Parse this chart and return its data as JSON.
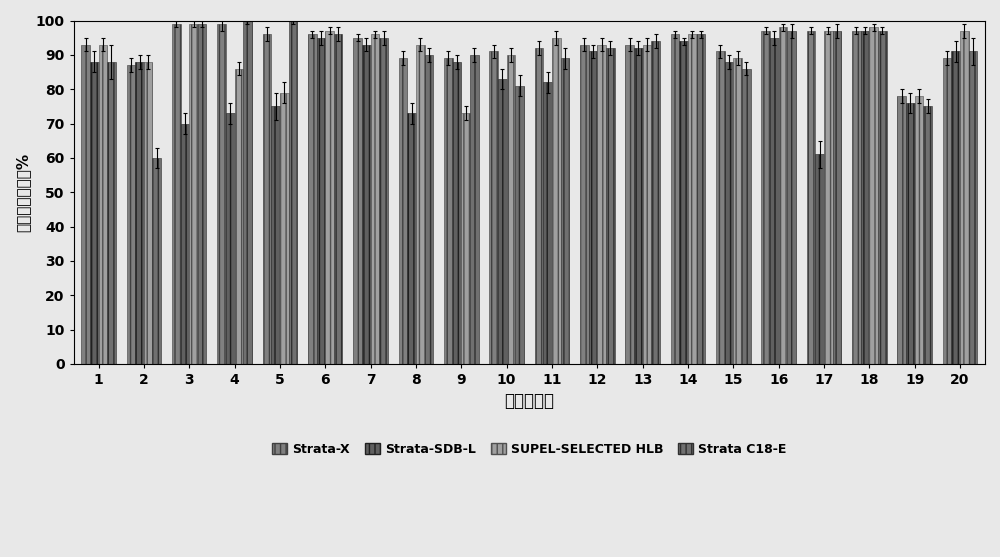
{
  "categories": [
    1,
    2,
    3,
    4,
    5,
    6,
    7,
    8,
    9,
    10,
    11,
    12,
    13,
    14,
    15,
    16,
    17,
    18,
    19,
    20
  ],
  "series": {
    "Strata-X": [
      93,
      87,
      99,
      99,
      96,
      96,
      95,
      89,
      89,
      91,
      92,
      93,
      93,
      96,
      91,
      97,
      97,
      97,
      78,
      89
    ],
    "Strata-SDB-L": [
      88,
      88,
      70,
      73,
      75,
      95,
      93,
      73,
      88,
      83,
      82,
      91,
      92,
      94,
      88,
      95,
      61,
      97,
      76,
      91
    ],
    "SUPEL-SELECTED HLB": [
      93,
      88,
      99,
      86,
      79,
      97,
      96,
      93,
      73,
      90,
      95,
      93,
      93,
      96,
      89,
      98,
      97,
      98,
      78,
      97
    ],
    "Strata C18-E": [
      88,
      60,
      99,
      100,
      100,
      96,
      95,
      90,
      90,
      81,
      89,
      92,
      94,
      96,
      86,
      97,
      97,
      97,
      75,
      91
    ]
  },
  "errors": {
    "Strata-X": [
      2,
      2,
      1,
      2,
      2,
      1,
      1,
      2,
      2,
      2,
      2,
      2,
      2,
      1,
      2,
      1,
      1,
      1,
      2,
      2
    ],
    "Strata-SDB-L": [
      3,
      2,
      3,
      3,
      4,
      2,
      2,
      3,
      2,
      3,
      3,
      2,
      2,
      1,
      2,
      2,
      4,
      1,
      3,
      3
    ],
    "SUPEL-SELECTED HLB": [
      2,
      2,
      1,
      2,
      3,
      1,
      1,
      2,
      2,
      2,
      2,
      2,
      2,
      1,
      2,
      1,
      1,
      1,
      2,
      2
    ],
    "Strata C18-E": [
      5,
      3,
      1,
      1,
      1,
      2,
      2,
      2,
      2,
      3,
      3,
      2,
      2,
      1,
      2,
      2,
      2,
      1,
      2,
      4
    ]
  },
  "bar_styles": [
    {
      "color": "#808080",
      "hatch": "|||",
      "edgecolor": "#404040",
      "label": "Strata-X"
    },
    {
      "color": "#606060",
      "hatch": "|||",
      "edgecolor": "#202020",
      "label": "Strata-SDB-L"
    },
    {
      "color": "#a0a0a0",
      "hatch": "|||",
      "edgecolor": "#505050",
      "label": "SUPEL-SELECTED HLB"
    },
    {
      "color": "#707070",
      "hatch": "|||",
      "edgecolor": "#303030",
      "label": "Strata C18-E"
    }
  ],
  "ylabel": "固相著取回收率%",
  "xlabel": "酚性化合物",
  "ylim": [
    0,
    100
  ],
  "yticks": [
    0,
    10,
    20,
    30,
    40,
    50,
    60,
    70,
    80,
    90,
    100
  ],
  "legend_labels": [
    "Strata-X",
    "Strata-SDB-L",
    "SUPEL-SELECTED HLB",
    "Strata C18-E"
  ],
  "fig_facecolor": "#e8e8e8",
  "ax_facecolor": "#e8e8e8",
  "bar_width": 0.19,
  "figsize": [
    10.0,
    5.57
  ],
  "dpi": 100
}
